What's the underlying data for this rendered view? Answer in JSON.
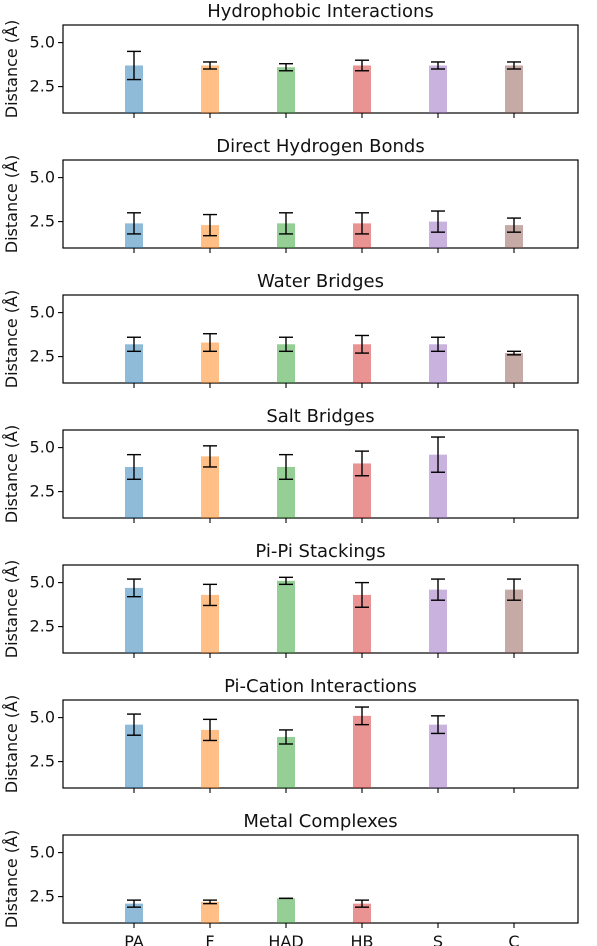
{
  "chart_data": {
    "type": "bar",
    "categories": [
      "PA",
      "F",
      "HAD",
      "HB",
      "S",
      "C"
    ],
    "colors": [
      "#1f77b4",
      "#ff7f0e",
      "#2ca02c",
      "#d62728",
      "#9467bd",
      "#8c564b"
    ],
    "ylim": [
      1.0,
      6.0
    ],
    "yticks": [
      2.5,
      5.0
    ],
    "ylabel": "Distance (Å)",
    "panels": [
      {
        "title": "Hydrophobic Interactions",
        "values": [
          3.7,
          3.7,
          3.6,
          3.7,
          3.7,
          3.7
        ],
        "errors": [
          0.8,
          0.2,
          0.2,
          0.3,
          0.2,
          0.2
        ]
      },
      {
        "title": "Direct Hydrogen Bonds",
        "values": [
          2.4,
          2.3,
          2.4,
          2.4,
          2.5,
          2.3
        ],
        "errors": [
          0.6,
          0.6,
          0.6,
          0.6,
          0.6,
          0.4
        ]
      },
      {
        "title": "Water Bridges",
        "values": [
          3.2,
          3.3,
          3.2,
          3.2,
          3.2,
          2.7
        ],
        "errors": [
          0.4,
          0.5,
          0.4,
          0.5,
          0.4,
          0.1
        ]
      },
      {
        "title": "Salt Bridges",
        "values": [
          3.9,
          4.5,
          3.9,
          4.1,
          4.6,
          null
        ],
        "errors": [
          0.7,
          0.6,
          0.7,
          0.7,
          1.0,
          null
        ]
      },
      {
        "title": "Pi-Pi Stackings",
        "values": [
          4.7,
          4.3,
          5.1,
          4.3,
          4.6,
          4.6
        ],
        "errors": [
          0.5,
          0.6,
          0.2,
          0.7,
          0.6,
          0.6
        ]
      },
      {
        "title": "Pi-Cation Interactions",
        "values": [
          4.6,
          4.3,
          3.9,
          5.1,
          4.6,
          null
        ],
        "errors": [
          0.6,
          0.6,
          0.4,
          0.5,
          0.5,
          null
        ]
      },
      {
        "title": "Metal Complexes",
        "values": [
          2.1,
          2.2,
          2.4,
          2.1,
          null,
          null
        ],
        "errors": [
          0.2,
          0.1,
          0.0,
          0.2,
          null,
          null
        ]
      }
    ]
  }
}
